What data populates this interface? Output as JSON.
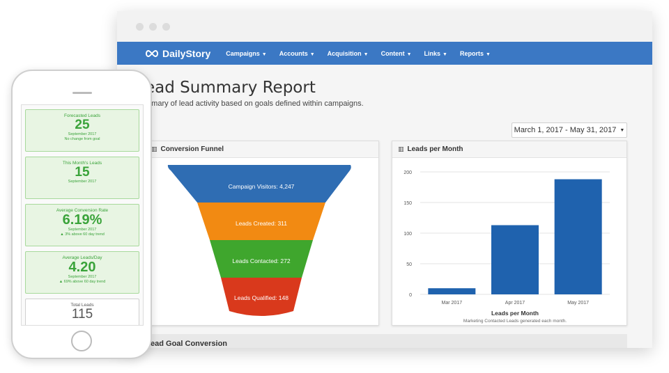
{
  "brand": {
    "name": "DailyStory",
    "nav_color": "#3b78c4"
  },
  "nav": [
    {
      "label": "Campaigns"
    },
    {
      "label": "Accounts"
    },
    {
      "label": "Acquisition"
    },
    {
      "label": "Content"
    },
    {
      "label": "Links"
    },
    {
      "label": "Reports"
    }
  ],
  "page": {
    "title": "Lead Summary Report",
    "title_visible": "ead Summary Report",
    "subtitle_visible": "mmary of lead activity based on goals defined within campaigns."
  },
  "date_range": "March 1, 2017 - May 31, 2017",
  "funnel": {
    "title": "Conversion Funnel",
    "stages": [
      {
        "label": "Campaign Visitors: 4,247",
        "color": "#2f6db3"
      },
      {
        "label": "Leads Created: 311",
        "color": "#f28a12"
      },
      {
        "label": "Leads Contacted: 272",
        "color": "#3fa62d"
      },
      {
        "label": "Leads Qualified: 148",
        "color": "#d9391c"
      }
    ]
  },
  "leads_chart": {
    "title": "Leads per Month",
    "bar_color": "#1f62ae"
  },
  "chart_data": {
    "type": "bar",
    "categories": [
      "Mar 2017",
      "Apr 2017",
      "May 2017"
    ],
    "values": [
      10,
      113,
      188
    ],
    "title": "Leads per Month",
    "subtitle": "Marketing Contacted Leads generated each month.",
    "yticks": [
      0,
      50,
      100,
      150,
      200
    ],
    "ylim": [
      0,
      200
    ],
    "grid": true
  },
  "bottom": {
    "title_visible": "ead Goal Conversion"
  },
  "mobile": {
    "cards": [
      {
        "label": "Forecasted Leads",
        "value": "25",
        "sub1": "September 2017",
        "sub2": "No change from goal"
      },
      {
        "label": "This Month's Leads",
        "value": "15",
        "sub1": "September 2017",
        "sub2": ""
      },
      {
        "label": "Average Conversion Rate",
        "value": "6.19%",
        "sub1": "September 2017",
        "sub2": "▲ 3% above 60 day trend"
      },
      {
        "label": "Average Leads/Day",
        "value": "4.20",
        "sub1": "September 2017",
        "sub2": "▲ 69% above 60 day trend"
      },
      {
        "label": "Total Leads",
        "value": "115",
        "sub1": "",
        "sub2": ""
      }
    ]
  }
}
